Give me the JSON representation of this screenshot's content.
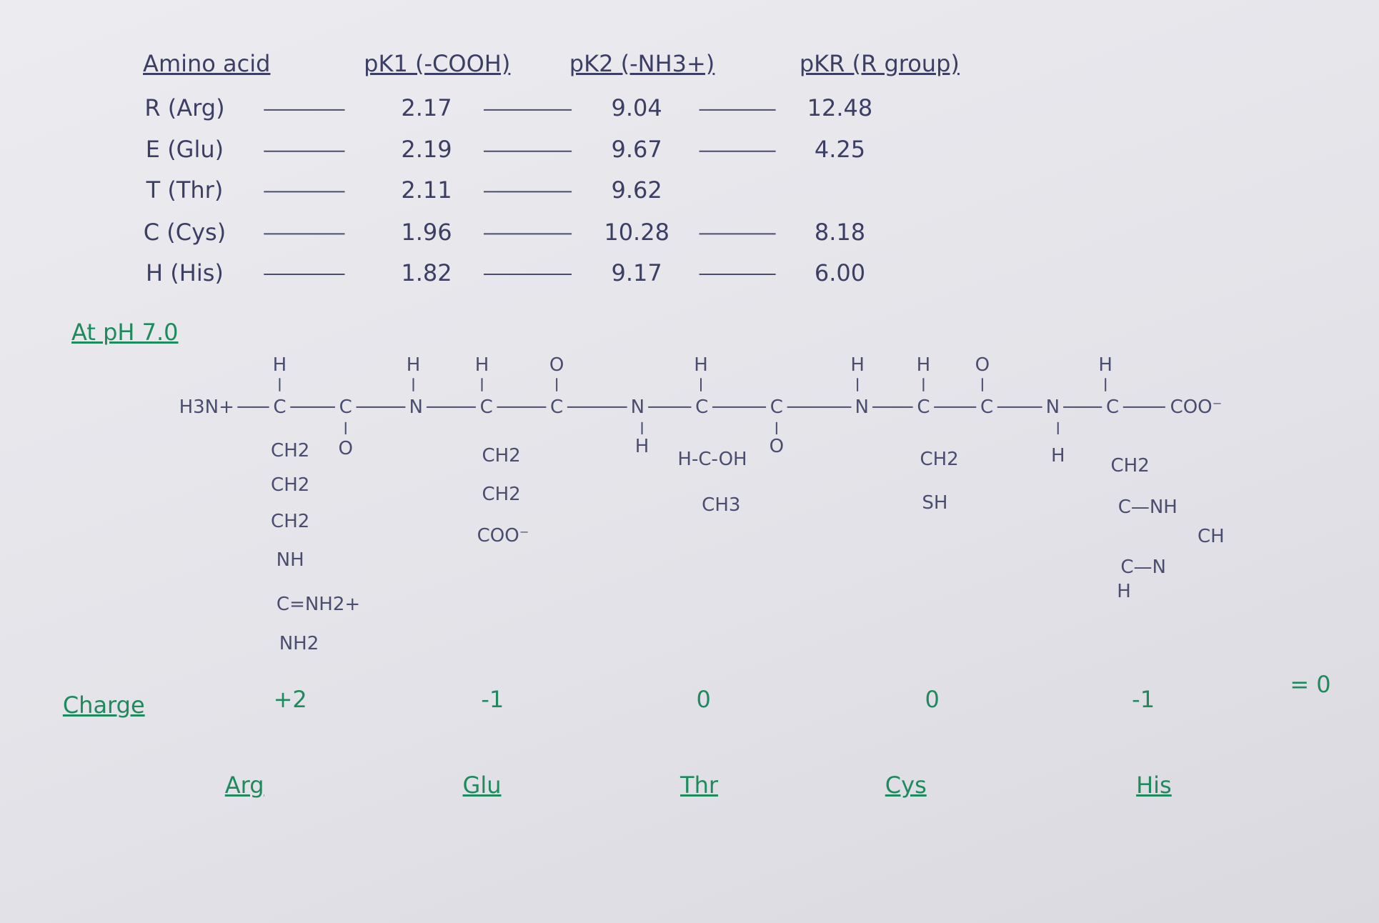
{
  "table": {
    "headers": [
      "Amino acid",
      "pK1 (-COOH)",
      "pK2 (-NH3+)",
      "pKR (R group)"
    ],
    "rows": [
      [
        "R (Arg)",
        "2.17",
        "9.04",
        "12.48"
      ],
      [
        "E (Glu)",
        "2.19",
        "9.67",
        "4.25"
      ],
      [
        "T (Thr)",
        "2.11",
        "9.62"
      ],
      [
        "C (Cys)",
        "1.96",
        "10.28",
        "8.18"
      ],
      [
        "H (His)",
        "1.82",
        "9.17",
        "6.00"
      ]
    ]
  },
  "heading": "At pH 7.0",
  "structure": {
    "backbone": [
      "H3N+",
      "C",
      "C",
      "N",
      "C",
      "C",
      "N",
      "C",
      "C",
      "N",
      "C",
      "C",
      "N",
      "C",
      "COO⁻"
    ],
    "above": [
      "H",
      "H",
      "H",
      "O",
      "H",
      "H",
      "H",
      "O",
      "H"
    ],
    "below": [
      "O",
      "H",
      "O",
      "H"
    ],
    "side_chains": [
      [
        "CH2",
        "CH2",
        "CH2",
        "NH",
        "C=NH2+",
        "NH2"
      ],
      [
        "CH2",
        "CH2",
        "COO⁻"
      ],
      [
        "H-C-OH",
        "CH3"
      ],
      [
        "CH2",
        "SH"
      ],
      [
        "CH2",
        "C—NH",
        "CH",
        "C—N",
        "H"
      ]
    ]
  },
  "charge": {
    "label": "Charge",
    "values": [
      "+2",
      "-1",
      "0",
      "0",
      "-1"
    ],
    "total": "= 0"
  },
  "residues": [
    "Arg",
    "Glu",
    "Thr",
    "Cys",
    "His"
  ]
}
